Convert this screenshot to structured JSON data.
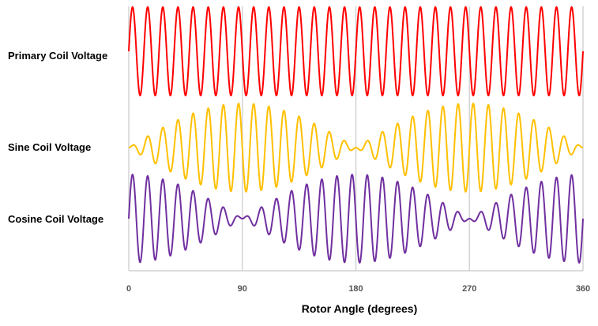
{
  "chart_data": {
    "type": "line",
    "title": "",
    "xlabel": "Rotor Angle (degrees)",
    "ylabel": "",
    "xlim": [
      0,
      360
    ],
    "xticks": [
      "0",
      "90",
      "180",
      "270",
      "360"
    ],
    "grid": "vertical",
    "carrier_cycles": 30,
    "series": [
      {
        "name": "Primary Coil Voltage",
        "color": "#ff0000",
        "envelope": "constant",
        "amplitude": 1
      },
      {
        "name": "Sine Coil Voltage",
        "color": "#ffc000",
        "envelope": "sin",
        "amplitude": 1
      },
      {
        "name": "Cosine Coil Voltage",
        "color": "#7030a0",
        "envelope": "cos",
        "amplitude": 1
      }
    ]
  }
}
